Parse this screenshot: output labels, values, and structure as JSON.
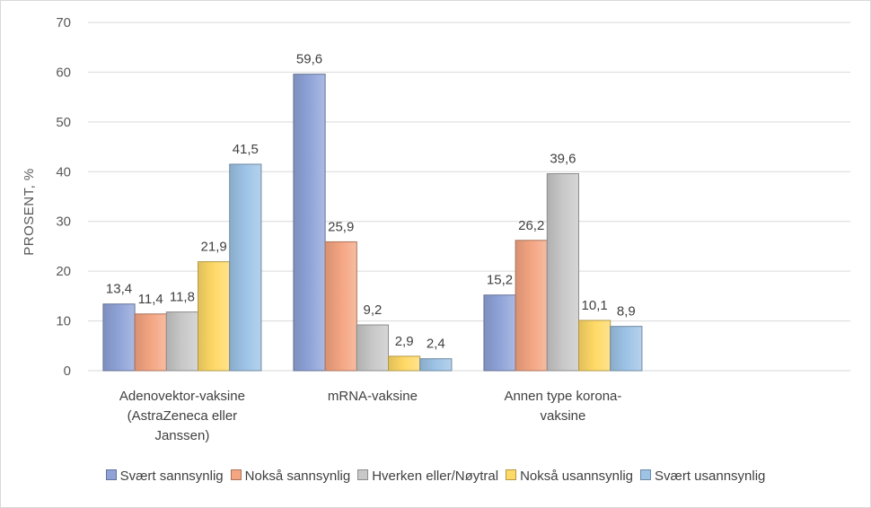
{
  "chart_data": {
    "type": "bar",
    "title": "",
    "xlabel": "",
    "ylabel": "PROSENT, %",
    "ylim": [
      0,
      70
    ],
    "yticks": [
      0,
      10,
      20,
      30,
      40,
      50,
      60,
      70
    ],
    "grid": true,
    "legend_position": "bottom",
    "categories": [
      [
        "Adenovektor-vaksine",
        "(AstraZeneca eller",
        "Janssen)"
      ],
      [
        "mRNA-vaksine"
      ],
      [
        "Annen type korona-",
        "vaksine"
      ]
    ],
    "series": [
      {
        "name": "Svært sannsynlig",
        "color": "#8FA3D8",
        "values": [
          13.4,
          59.6,
          15.2
        ],
        "labels": [
          "13,4",
          "59,6",
          "15,2"
        ]
      },
      {
        "name": "Nokså sannsynlig",
        "color": "#F4A582",
        "values": [
          11.4,
          25.9,
          26.2
        ],
        "labels": [
          "11,4",
          "25,9",
          "26,2"
        ]
      },
      {
        "name": "Hverken eller/Nøytral",
        "color": "#C8C8C8",
        "values": [
          11.8,
          9.2,
          39.6
        ],
        "labels": [
          "11,8",
          "9,2",
          "39,6"
        ]
      },
      {
        "name": "Nokså usannsynlig",
        "color": "#FFD966",
        "values": [
          21.9,
          2.9,
          10.1
        ],
        "labels": [
          "21,9",
          "2,9",
          "10,1"
        ]
      },
      {
        "name": "Svært usannsynlig",
        "color": "#9DC3E6",
        "values": [
          41.5,
          2.4,
          8.9
        ],
        "labels": [
          "41,5",
          "2,4",
          "8,9"
        ]
      }
    ]
  }
}
